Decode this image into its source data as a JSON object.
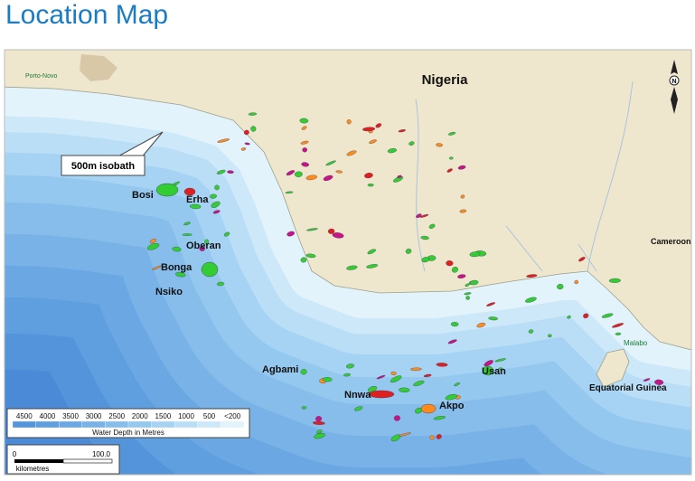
{
  "header": {
    "title": "Location Map"
  },
  "map": {
    "labels": {
      "country": "Nigeria",
      "porto_novo": "Porto-Novo",
      "cameroon": "Cameroon",
      "malabo": "Malabo",
      "equatorial_guinea": "Equatorial Guinea",
      "isobath": "500m isobath",
      "north": "N"
    },
    "fields": [
      "Bosi",
      "Erha",
      "Oberan",
      "Bonga",
      "Nsiko",
      "Agbami",
      "Nnwa",
      "Akpo",
      "Usan"
    ]
  },
  "legend": {
    "depths": [
      "4500",
      "4000",
      "3500",
      "3000",
      "2500",
      "2000",
      "1500",
      "1000",
      "500",
      "<200"
    ],
    "title": "Water Depth  in Metres"
  },
  "scale": {
    "labels": [
      "0",
      "100.0"
    ],
    "unit": "kilometres"
  }
}
